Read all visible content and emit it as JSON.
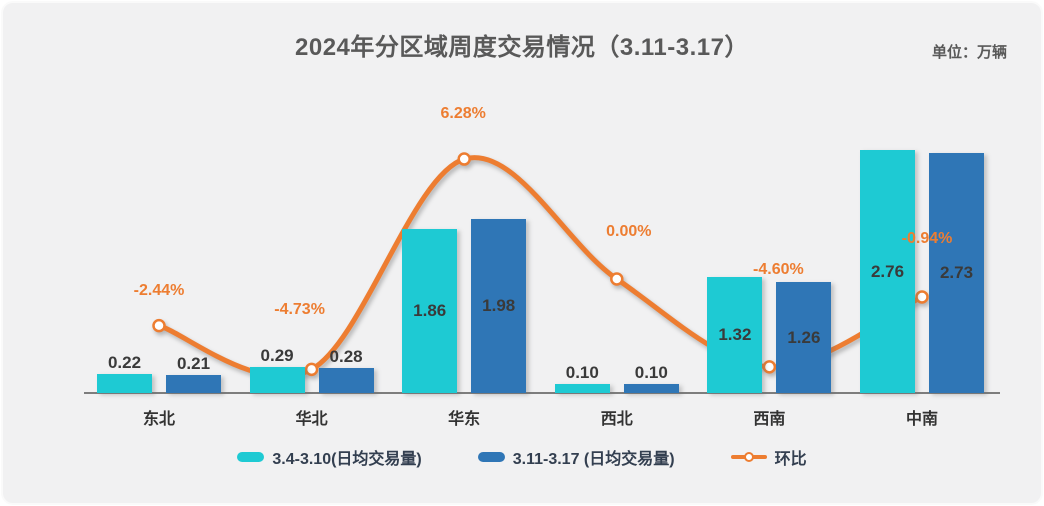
{
  "title": "2024年分区域周度交易情况（3.11-3.17）",
  "unit_label": "单位：万辆",
  "chart_data": {
    "type": "bar",
    "subtype": "grouped-bars-with-line",
    "title": "2024年分区域周度交易情况（3.11-3.17）",
    "value_unit": "万辆",
    "categories": [
      "东北",
      "华北",
      "华东",
      "西北",
      "西南",
      "中南"
    ],
    "series": [
      {
        "name": "3.4-3.10(日均交易量)",
        "type": "bar",
        "color": "#1ecad3",
        "values": [
          0.22,
          0.29,
          1.86,
          0.1,
          1.32,
          2.76
        ]
      },
      {
        "name": "3.11-3.17 (日均交易量)",
        "type": "bar",
        "color": "#2f76b6",
        "values": [
          0.21,
          0.28,
          1.98,
          0.1,
          1.26,
          2.73
        ]
      }
    ],
    "line": {
      "name": "环比",
      "color": "#ed7d31",
      "values": [
        -2.44,
        -4.73,
        6.28,
        0.0,
        -4.6,
        -0.94
      ],
      "labels": [
        "-2.44%",
        "-4.73%",
        "6.28%",
        "0.00%",
        "-4.60%",
        "-0.94%"
      ]
    },
    "legend_position": "bottom",
    "grid": false,
    "value_labels_shown": true,
    "colors": {
      "title_text": "#595959",
      "value_text": "#3a3a3a",
      "axis_line": "#7d7d7d",
      "legend_text": "#333f50",
      "background": "#f1f1f2"
    }
  }
}
